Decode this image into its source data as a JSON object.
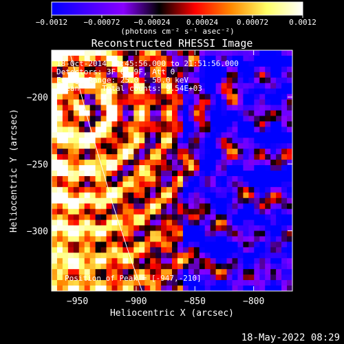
{
  "chart_data": {
    "type": "heatmap",
    "title": "Reconstructed RHESSI Image",
    "xlabel": "Heliocentric X (arcsec)",
    "ylabel": "Heliocentric Y (arcsec)",
    "x_range": [
      -972,
      -767
    ],
    "y_range": [
      -345,
      -165
    ],
    "x_ticks": [
      -950,
      -900,
      -850,
      -800
    ],
    "y_ticks": [
      -200,
      -250,
      -300
    ],
    "x_tick_labels": [
      "−950",
      "−900",
      "−850",
      "−800"
    ],
    "y_tick_labels": [
      "−200",
      "−250",
      "−300"
    ],
    "colorbar": {
      "range": [
        -0.0012,
        0.0012
      ],
      "ticks": [
        -0.0012,
        -0.00072,
        -0.00024,
        0.00024,
        0.00072,
        0.0012
      ],
      "tick_labels": [
        "−0.0012",
        "−0.00072",
        "−0.00024",
        "0.00024",
        "0.00072",
        "0.0012"
      ],
      "unit_label": "(photons cm⁻² s⁻¹ asec⁻²)",
      "colormap": [
        "#0000ff",
        "#4400ff",
        "#8800ff",
        "#000000",
        "#ff0000",
        "#ff8800",
        "#ffff66",
        "#ffffff"
      ]
    },
    "annotations": [
      "18-Oct-2014 21:45:56.000 to 21:51:56.000",
      "Detectors: 3F 6F 9F, Att 0",
      "Energy Range: 25.0 - 50.0 keV",
      "Clean     Total counts: 9.54E+03",
      "Position of Peak = [-947,-210]"
    ],
    "peak": {
      "x": -947,
      "y": -210
    },
    "limb_curve": [
      [
        -957,
        -165
      ],
      [
        -940,
        -220
      ],
      [
        -920,
        -280
      ],
      [
        -905,
        -320
      ],
      [
        -895,
        -345
      ]
    ]
  },
  "footer": {
    "timestamp": "18-May-2022 08:29"
  }
}
